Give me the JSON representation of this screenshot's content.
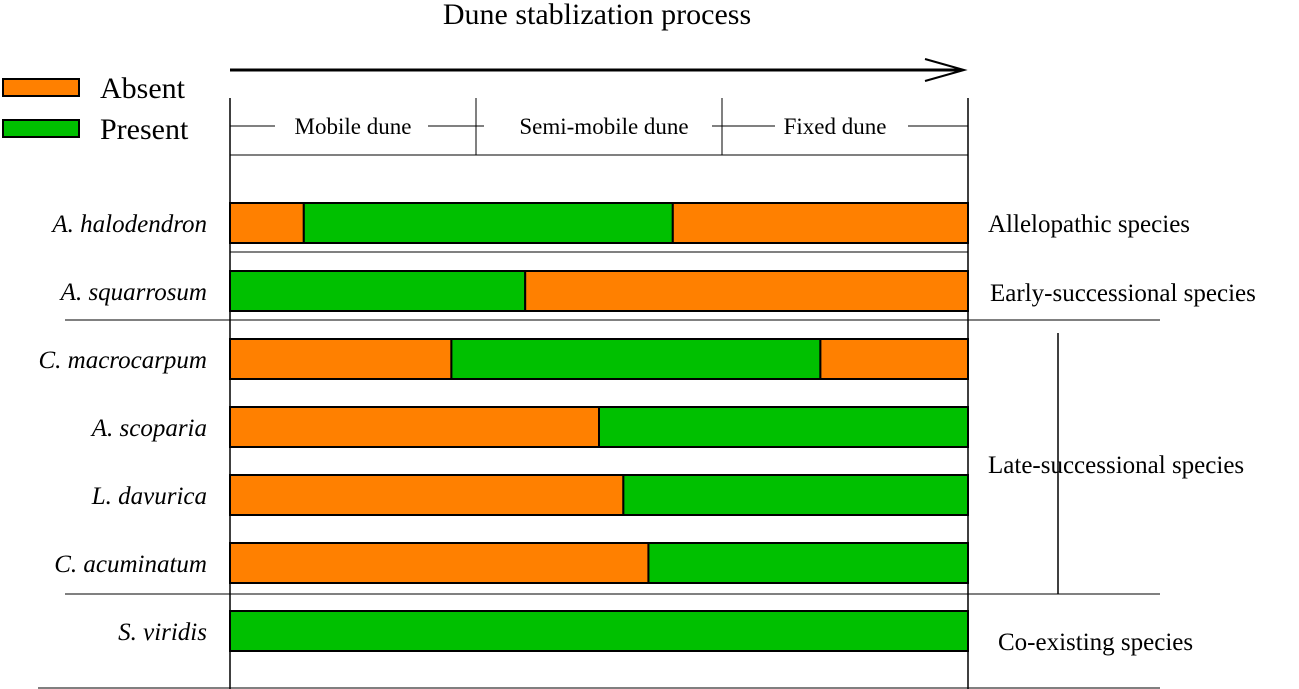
{
  "chart_data": {
    "type": "bar",
    "orientation": "horizontal",
    "stacked": true,
    "title": "Dune stablization process",
    "stages": [
      "Mobile dune",
      "Semi-mobile dune",
      "Fixed dune"
    ],
    "legend": [
      {
        "label": "Absent",
        "color": "#ff8000"
      },
      {
        "label": "Present",
        "color": "#00c000"
      }
    ],
    "categories": [
      "A. halodendron",
      "A. squarrosum",
      "C. macrocarpum",
      "A. scoparia",
      "L. davurica",
      "C. acuminatum",
      "S. viridis"
    ],
    "xlim": [
      0,
      1
    ],
    "rows": [
      {
        "species": "A. halodendron",
        "segments": [
          {
            "from": 0,
            "to": 0.1,
            "state": "Absent"
          },
          {
            "from": 0.1,
            "to": 0.6,
            "state": "Present"
          },
          {
            "from": 0.6,
            "to": 1,
            "state": "Absent"
          }
        ]
      },
      {
        "species": "A. squarrosum",
        "segments": [
          {
            "from": 0,
            "to": 0.4,
            "state": "Present"
          },
          {
            "from": 0.4,
            "to": 1,
            "state": "Absent"
          }
        ]
      },
      {
        "species": "C. macrocarpum",
        "segments": [
          {
            "from": 0,
            "to": 0.3,
            "state": "Absent"
          },
          {
            "from": 0.3,
            "to": 0.8,
            "state": "Present"
          },
          {
            "from": 0.8,
            "to": 1,
            "state": "Absent"
          }
        ]
      },
      {
        "species": "A. scoparia",
        "segments": [
          {
            "from": 0,
            "to": 0.5,
            "state": "Absent"
          },
          {
            "from": 0.5,
            "to": 1,
            "state": "Present"
          }
        ]
      },
      {
        "species": "L. davurica",
        "segments": [
          {
            "from": 0,
            "to": 0.533,
            "state": "Absent"
          },
          {
            "from": 0.533,
            "to": 1,
            "state": "Present"
          }
        ]
      },
      {
        "species": "C. acuminatum",
        "segments": [
          {
            "from": 0,
            "to": 0.567,
            "state": "Absent"
          },
          {
            "from": 0.567,
            "to": 1,
            "state": "Present"
          }
        ]
      },
      {
        "species": "S. viridis",
        "segments": [
          {
            "from": 0,
            "to": 1,
            "state": "Present"
          }
        ]
      }
    ],
    "groups": [
      {
        "label": "Allelopathic species",
        "species": [
          "A. halodendron"
        ]
      },
      {
        "label": "Early-successional species",
        "species": [
          "A. squarrosum"
        ]
      },
      {
        "label": "Late-successional species",
        "species": [
          "C. macrocarpum",
          "A. scoparia",
          "L. davurica",
          "C. acuminatum"
        ]
      },
      {
        "label": "Co-existing species",
        "species": [
          "S. viridis"
        ]
      }
    ]
  }
}
